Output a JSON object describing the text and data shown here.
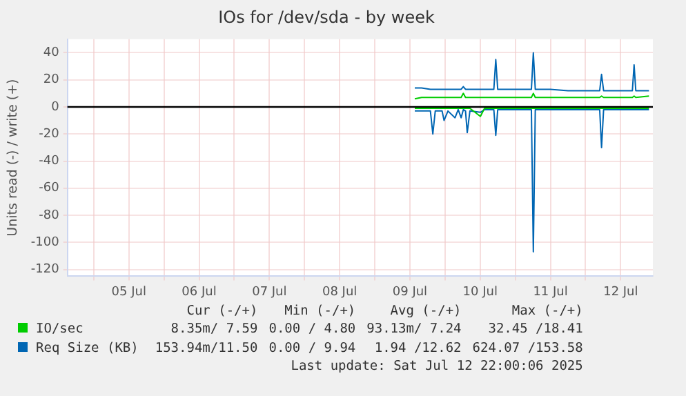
{
  "chart_data": {
    "type": "line",
    "title": "IOs for /dev/sda - by week",
    "ylabel": "Units read (-) / write (+)",
    "x": [
      "2025-07-09T13:40",
      "2025-07-09T16:00",
      "2025-07-09T19:00",
      "2025-07-09T19:50",
      "2025-07-09T20:40",
      "2025-07-09T23:00",
      "2025-07-09T23:40",
      "2025-07-10T01:00",
      "2025-07-10T03:25",
      "2025-07-10T04:30",
      "2025-07-10T05:30",
      "2025-07-10T06:15",
      "2025-07-10T07:00",
      "2025-07-10T07:35",
      "2025-07-10T08:30",
      "2025-07-10T12:05",
      "2025-07-10T13:30",
      "2025-07-10T16:40",
      "2025-07-10T17:20",
      "2025-07-10T18:00",
      "2025-07-11T05:30",
      "2025-07-11T06:10",
      "2025-07-11T06:50",
      "2025-07-11T12:00",
      "2025-07-11T18:00",
      "2025-07-12T04:50",
      "2025-07-12T05:28",
      "2025-07-12T06:10",
      "2025-07-12T16:00",
      "2025-07-12T16:35",
      "2025-07-12T17:10",
      "2025-07-12T21:40"
    ],
    "series": [
      {
        "color": "#00cc00",
        "values": [
          -1,
          -1,
          -1,
          -1,
          -1,
          -1,
          -1,
          -1,
          -1,
          -1,
          -1,
          -1,
          -1,
          -1,
          -1,
          -7,
          -1,
          -1,
          -1,
          -1,
          -1,
          -1,
          -1,
          -1,
          -1,
          -1,
          -1,
          -1,
          -1,
          -1,
          -1,
          -1
        ]
      },
      {
        "name": "IO/sec",
        "color": "#00cc00",
        "values": [
          6,
          7,
          7,
          7,
          7,
          7,
          7,
          7,
          7,
          7,
          7,
          10,
          7,
          7,
          7,
          7,
          7,
          7,
          7,
          7,
          7,
          10,
          7,
          7,
          7,
          7,
          8,
          7,
          7,
          8,
          7,
          8
        ]
      },
      {
        "color": "#0066b3",
        "values": [
          -3,
          -3,
          -3,
          -20,
          -3,
          -3,
          -10,
          -3,
          -8,
          -2,
          -8,
          -2,
          -3,
          -19,
          -3,
          -4,
          -2,
          -2,
          -21,
          -2,
          -2,
          -107,
          -2,
          -2,
          -2,
          -2,
          -30,
          -2,
          -2,
          -2,
          -2,
          -2
        ]
      },
      {
        "name": "Req Size (KB)",
        "color": "#0066b3",
        "values": [
          14,
          14,
          13,
          13,
          13,
          13,
          13,
          13,
          13,
          13,
          13,
          15,
          13,
          13,
          13,
          13,
          13,
          13,
          35,
          13,
          13,
          40,
          13,
          13,
          12,
          12,
          24,
          12,
          12,
          31,
          12,
          12
        ]
      }
    ],
    "xlim": [
      "2025-07-04T15:00",
      "2025-07-12T23:00"
    ],
    "xticks": [
      {
        "value": "2025-07-05T00:00",
        "label": null
      },
      {
        "value": "2025-07-05T12:00",
        "label": "05 Jul"
      },
      {
        "value": "2025-07-06T00:00",
        "label": null
      },
      {
        "value": "2025-07-06T12:00",
        "label": "06 Jul"
      },
      {
        "value": "2025-07-07T00:00",
        "label": null
      },
      {
        "value": "2025-07-07T12:00",
        "label": "07 Jul"
      },
      {
        "value": "2025-07-08T00:00",
        "label": null
      },
      {
        "value": "2025-07-08T12:00",
        "label": "08 Jul"
      },
      {
        "value": "2025-07-09T00:00",
        "label": null
      },
      {
        "value": "2025-07-09T12:00",
        "label": "09 Jul"
      },
      {
        "value": "2025-07-10T00:00",
        "label": null
      },
      {
        "value": "2025-07-10T12:00",
        "label": "10 Jul"
      },
      {
        "value": "2025-07-11T00:00",
        "label": null
      },
      {
        "value": "2025-07-11T12:00",
        "label": "11 Jul"
      },
      {
        "value": "2025-07-12T00:00",
        "label": null
      },
      {
        "value": "2025-07-12T12:00",
        "label": "12 Jul"
      }
    ],
    "ylim": [
      -125,
      50
    ],
    "yticks": [
      -120,
      -100,
      -80,
      -60,
      -40,
      -20,
      0,
      20,
      40
    ],
    "ref_lines": [
      {
        "axis": "y",
        "value": 0,
        "color": "#000000"
      }
    ],
    "grid": true,
    "legend": "bottom",
    "marker": "none",
    "line_style": "solid",
    "annotations": [
      "Cur (-/+)",
      "Min (-/+)",
      "Avg (-/+)",
      "Max (-/+)",
      "8.35m/ 7.59",
      "0.00 / 4.80",
      "93.13m/ 7.24",
      "32.45 /18.41",
      "153.94m/11.50",
      "0.00 / 9.94",
      "1.94 /12.62",
      "624.07 /153.58",
      "Last update: Sat Jul 12 22:00:06 2025"
    ]
  }
}
